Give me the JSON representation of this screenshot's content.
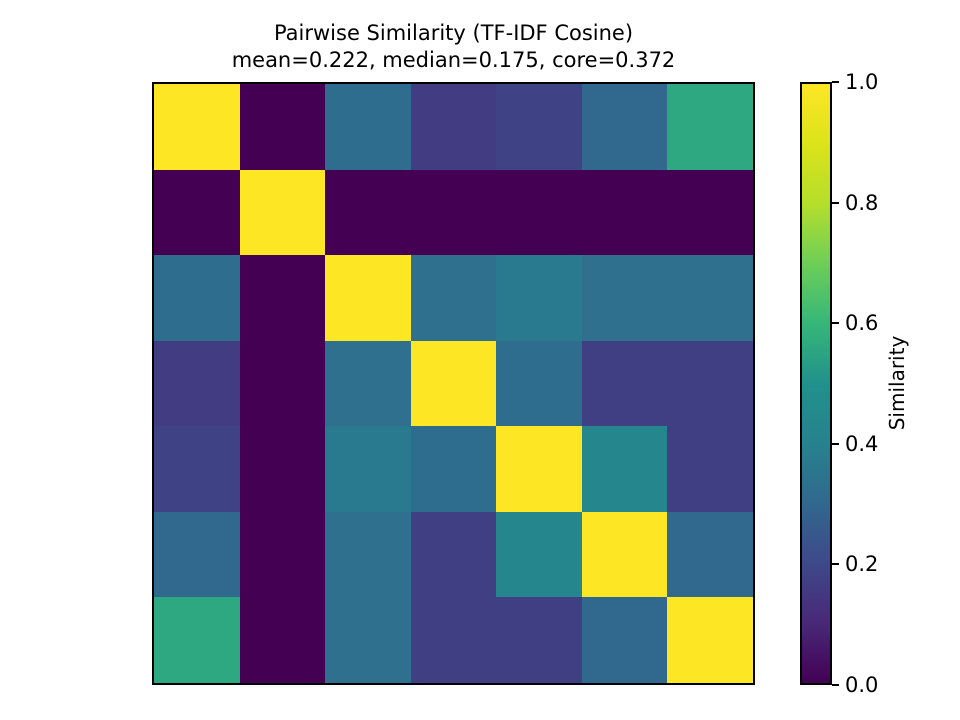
{
  "figure": {
    "background_color": "#ffffff",
    "text_color": "#000000"
  },
  "chart_data": {
    "type": "heatmap",
    "title": "Pairwise Similarity (TF-IDF Cosine)",
    "subtitle": "mean=0.222, median=0.175, core=0.372",
    "stats": {
      "mean": 0.222,
      "median": 0.175,
      "core": 0.372
    },
    "n_rows": 7,
    "n_cols": 7,
    "matrix": [
      [
        1.0,
        0.0,
        0.32,
        0.16,
        0.18,
        0.3,
        0.56
      ],
      [
        0.0,
        1.0,
        0.0,
        0.0,
        0.0,
        0.0,
        0.0
      ],
      [
        0.32,
        0.0,
        1.0,
        0.33,
        0.37,
        0.33,
        0.33
      ],
      [
        0.16,
        0.0,
        0.33,
        1.0,
        0.32,
        0.17,
        0.17
      ],
      [
        0.18,
        0.0,
        0.37,
        0.32,
        1.0,
        0.43,
        0.17
      ],
      [
        0.3,
        0.0,
        0.33,
        0.17,
        0.43,
        1.0,
        0.3
      ],
      [
        0.56,
        0.0,
        0.33,
        0.17,
        0.17,
        0.3,
        1.0
      ]
    ],
    "vmin": 0.0,
    "vmax": 1.0,
    "colormap": "viridis",
    "colormap_stops": [
      "#440154",
      "#482878",
      "#3e4989",
      "#31688e",
      "#26828e",
      "#21918c",
      "#35b779",
      "#6ece58",
      "#b5de2b",
      "#dce319",
      "#fde725"
    ],
    "x_tick_labels_visible": false,
    "y_tick_labels_visible": false,
    "grid": false,
    "colorbar": {
      "label": "Similarity",
      "tick_values": [
        1.0,
        0.8,
        0.6,
        0.4,
        0.2,
        0.0
      ],
      "tick_labels": [
        "1.0",
        "0.8",
        "0.6",
        "0.4",
        "0.2",
        "0.0"
      ],
      "position": "right"
    }
  }
}
